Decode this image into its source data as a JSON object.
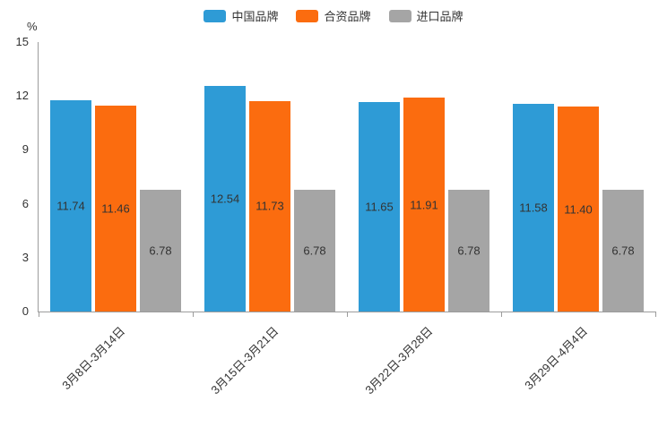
{
  "chart_data": {
    "type": "bar",
    "title": "",
    "unit": "%",
    "categories": [
      "3月8日-3月14日",
      "3月15日-3月21日",
      "3月22日-3月28日",
      "3月29日-4月4日"
    ],
    "series": [
      {
        "name": "中国品牌",
        "color": "#2E9BD6",
        "values": [
          11.74,
          12.54,
          11.65,
          11.58
        ]
      },
      {
        "name": "合资品牌",
        "color": "#FB6C0F",
        "values": [
          11.46,
          11.73,
          11.91,
          11.4
        ]
      },
      {
        "name": "进口品牌",
        "color": "#A5A5A5",
        "values": [
          6.78,
          6.78,
          6.78,
          6.78
        ]
      }
    ],
    "ylim": [
      0,
      15
    ],
    "y_ticks": [
      15,
      12,
      9,
      6,
      3,
      0
    ],
    "legend_position": "top",
    "grid": false,
    "value_label_decimals": 2
  },
  "colors": {
    "axis": "#9c9c9c",
    "text": "#333333"
  }
}
